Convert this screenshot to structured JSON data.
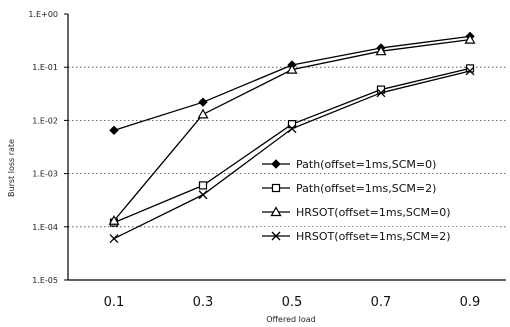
{
  "chart_data": {
    "type": "line",
    "xlabel": "Offered load",
    "ylabel": "Burst loss rate",
    "x": [
      0.1,
      0.3,
      0.5,
      0.7,
      0.9
    ],
    "x_tick_labels": [
      "0.1",
      "0.3",
      "0.5",
      "0.7",
      "0.9"
    ],
    "y_scale": "log",
    "ylim": [
      1e-05,
      1
    ],
    "y_tick_labels": [
      "1.E+00",
      "1.E-01",
      "1.E-02",
      "1.E-03",
      "1.E-04",
      "1.E-05"
    ],
    "grid": "horizontal-dotted",
    "legend_position": "right-middle",
    "series": [
      {
        "name": "Path(offset=1ms,SCM=0)",
        "marker": "diamond",
        "values": [
          0.0065,
          0.022,
          0.11,
          0.23,
          0.38
        ]
      },
      {
        "name": "Path(offset=1ms,SCM=2)",
        "marker": "square",
        "values": [
          0.00012,
          0.0006,
          0.0085,
          0.038,
          0.095
        ]
      },
      {
        "name": "HRSOT(offset=1ms,SCM=0)",
        "marker": "triangle",
        "values": [
          0.00013,
          0.013,
          0.09,
          0.2,
          0.33
        ]
      },
      {
        "name": "HRSOT(offset=1ms,SCM=2)",
        "marker": "x",
        "values": [
          6e-05,
          0.0004,
          0.007,
          0.033,
          0.085
        ]
      }
    ]
  }
}
